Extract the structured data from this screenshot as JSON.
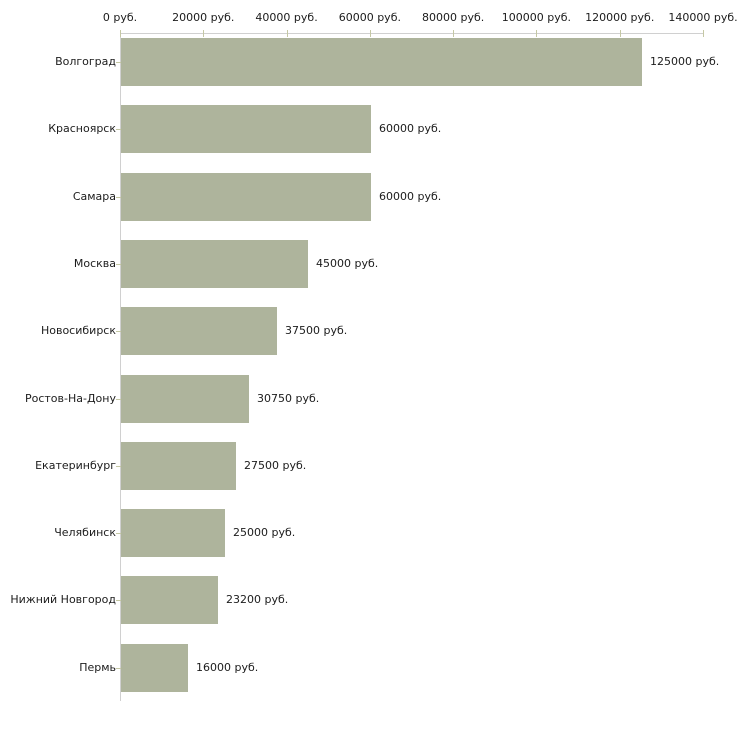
{
  "chart_data": {
    "type": "bar",
    "orientation": "horizontal",
    "title": "",
    "xlabel": "",
    "ylabel": "",
    "categories": [
      "Волгоград",
      "Красноярск",
      "Самара",
      "Москва",
      "Новосибирск",
      "Ростов-На-Дону",
      "Екатеринбург",
      "Челябинск",
      "Нижний Новгород",
      "Пермь"
    ],
    "values": [
      125000,
      60000,
      60000,
      45000,
      37500,
      30750,
      27500,
      25000,
      23200,
      16000
    ],
    "value_labels": [
      "125000 руб.",
      "60000 руб.",
      "60000 руб.",
      "45000 руб.",
      "37500 руб.",
      "30750 руб.",
      "27500 руб.",
      "25000 руб.",
      "23200 руб.",
      "16000 руб."
    ],
    "x_tick_values": [
      0,
      20000,
      40000,
      60000,
      80000,
      100000,
      120000,
      140000
    ],
    "x_tick_labels": [
      "0 руб.",
      "20000 руб.",
      "40000 руб.",
      "60000 руб.",
      "80000 руб.",
      "100000 руб.",
      "120000 руб.",
      "140000 руб."
    ],
    "xlim": [
      0,
      140000
    ],
    "grid": false,
    "legend": null,
    "axis_position": "top",
    "colors": {
      "bar": "#aeb49c",
      "axis_line": "#d0d0d0",
      "tick": "#c5c8a4",
      "text": "#1c1c1c",
      "background": "#ffffff"
    }
  }
}
